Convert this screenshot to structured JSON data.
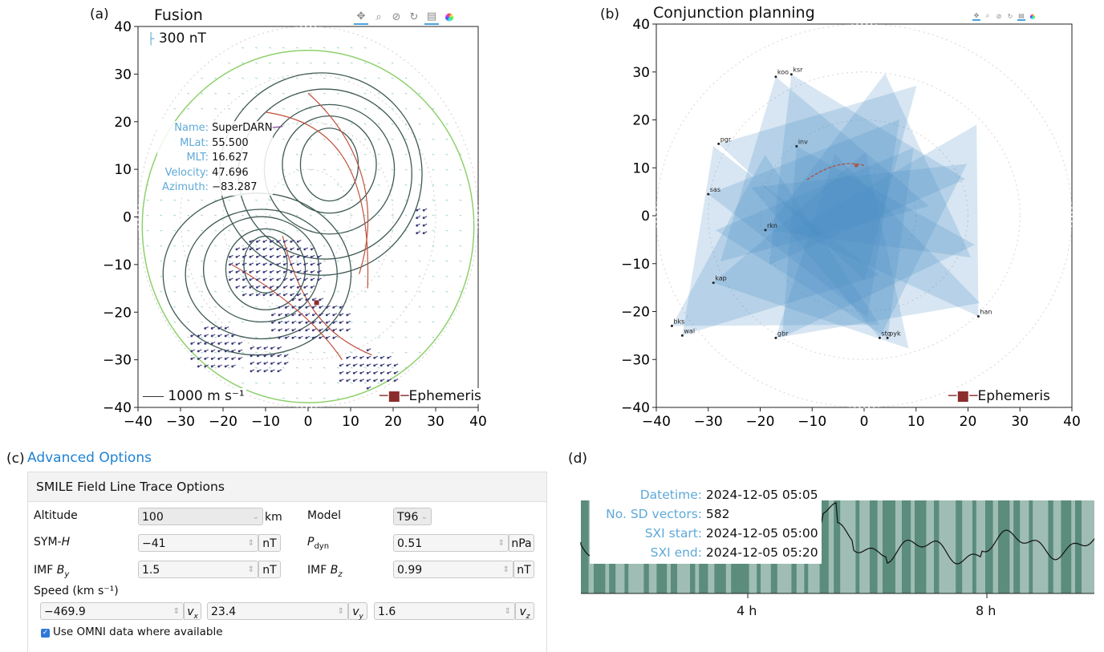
{
  "panel_a": {
    "letter": "(a)",
    "title": "Fusion",
    "scale_top": "300 nT",
    "scale_bottom": "1000 m s⁻¹",
    "legend": "Ephemeris",
    "toolbar_icons": [
      "pan-icon",
      "zoom-icon",
      "reset-zoom-icon",
      "refresh-icon",
      "save-icon",
      "color-wheel-icon"
    ],
    "tooltip": {
      "rows": [
        {
          "key": "Name:",
          "value": "SuperDARN"
        },
        {
          "key": "MLat:",
          "value": "55.500"
        },
        {
          "key": "MLT:",
          "value": "16.627"
        },
        {
          "key": "Velocity:",
          "value": "47.696"
        },
        {
          "key": "Azimuth:",
          "value": "−83.287"
        }
      ]
    },
    "x_ticks": [
      "−40",
      "−30",
      "−20",
      "−10",
      "0",
      "10",
      "20",
      "30",
      "40"
    ],
    "y_ticks": [
      "40",
      "30",
      "20",
      "10",
      "0",
      "−10",
      "−20",
      "−30",
      "−40"
    ],
    "xlim": [
      -40,
      40
    ],
    "ylim": [
      -40,
      40
    ],
    "colors": {
      "contour": "#3f5a55",
      "trace": "#c0503c",
      "boundary": "#8ed06c",
      "grid_vec": "#9fd6c5",
      "sd_vec": "#3b3a7a",
      "marker": "#8b2d2d"
    }
  },
  "panel_b": {
    "letter": "(b)",
    "title": "Conjunction planning",
    "legend": "Ephemeris",
    "toolbar_icons": [
      "pan-icon",
      "zoom-icon",
      "reset-zoom-icon",
      "refresh-icon",
      "save-icon",
      "color-wheel-icon"
    ],
    "stations": [
      {
        "name": "koo",
        "x": -17,
        "y": 29
      },
      {
        "name": "ksr",
        "x": -14,
        "y": 29.5
      },
      {
        "name": "pgr",
        "x": -28,
        "y": 15
      },
      {
        "name": "inv",
        "x": -13,
        "y": 14.5
      },
      {
        "name": "sas",
        "x": -30,
        "y": 4.5
      },
      {
        "name": "rkn",
        "x": -19,
        "y": -3
      },
      {
        "name": "kap",
        "x": -29,
        "y": -14
      },
      {
        "name": "bks",
        "x": -37,
        "y": -23
      },
      {
        "name": "wal",
        "x": -35,
        "y": -25
      },
      {
        "name": "gbr",
        "x": -17,
        "y": -25.5
      },
      {
        "name": "sto",
        "x": 3,
        "y": -25.5
      },
      {
        "name": "pyk",
        "x": 4.5,
        "y": -25.5
      },
      {
        "name": "han",
        "x": 22,
        "y": -21
      }
    ],
    "x_ticks": [
      "−40",
      "−30",
      "−20",
      "−10",
      "0",
      "10",
      "20",
      "30",
      "40"
    ],
    "y_ticks": [
      "40",
      "30",
      "20",
      "10",
      "0",
      "−10",
      "−20",
      "−30",
      "−40"
    ],
    "xlim": [
      -40,
      40
    ],
    "ylim": [
      -40,
      40
    ],
    "colors": {
      "fov": "#4a8ec4",
      "trace": "#b05040"
    }
  },
  "panel_c": {
    "letter": "(c)",
    "link": "Advanced Options",
    "header": "SMILE Field Line Trace Options",
    "altitude": {
      "label": "Altitude",
      "value": "100",
      "unit": "km"
    },
    "model": {
      "label": "Model",
      "value": "T96"
    },
    "symh": {
      "label": "SYM-",
      "label_it": "H",
      "value": "−41",
      "unit": "nT"
    },
    "pdyn": {
      "label": "P",
      "sub": "dyn",
      "value": "0.51",
      "unit": "nPa"
    },
    "imf_by": {
      "label": "IMF ",
      "label_it": "B",
      "sub": "y",
      "value": "1.5",
      "unit": "nT"
    },
    "imf_bz": {
      "label": "IMF ",
      "label_it": "B",
      "sub": "z",
      "value": "0.99",
      "unit": "nT"
    },
    "speed": {
      "label": "Speed (km s⁻¹)",
      "vx": "−469.9",
      "vy": "23.4",
      "vz": "1.6",
      "vx_unit": "v",
      "vx_sub": "x",
      "vy_unit": "v",
      "vy_sub": "y",
      "vz_unit": "v",
      "vz_sub": "z"
    },
    "omni": {
      "label": "Use OMNI data where available",
      "checked": true
    }
  },
  "panel_d": {
    "letter": "(d)",
    "info": [
      {
        "key": "Datetime:",
        "value": "2024-12-05 05:05"
      },
      {
        "key": "No. SD vectors:",
        "value": "582"
      },
      {
        "key": "SXI start:",
        "value": "2024-12-05 05:00"
      },
      {
        "key": "SXI end:",
        "value": "2024-12-05 05:20"
      }
    ],
    "ticks": [
      "4 h",
      "8 h"
    ],
    "colors": {
      "dark": "#5b8c7c",
      "light": "#9fbdb5",
      "line": "#111111"
    }
  }
}
